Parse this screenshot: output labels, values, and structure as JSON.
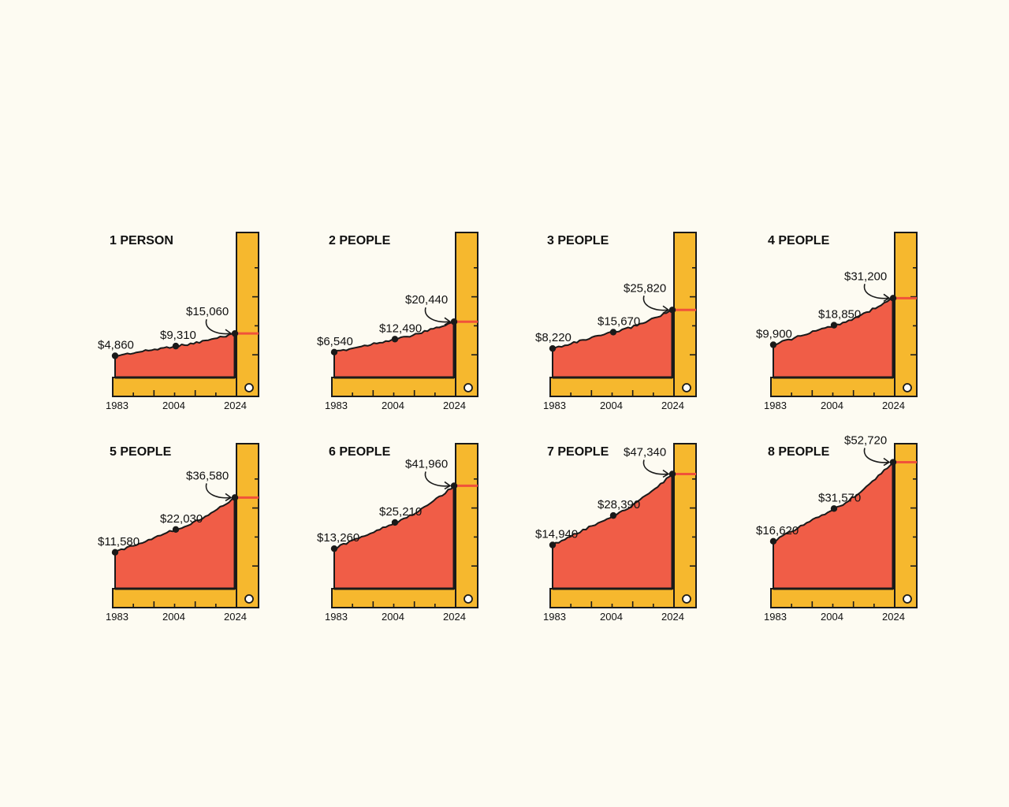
{
  "colors": {
    "background": "#fdfbf2",
    "ruler": "#f6b82e",
    "area": "#f05d47",
    "outline": "#1a1a1a",
    "marker_line": "#f0523a"
  },
  "chart_data": [
    {
      "type": "area",
      "title": "1 PERSON",
      "x": [
        "1983",
        "2004",
        "2024"
      ],
      "values": [
        4860,
        9310,
        15060
      ],
      "labels": [
        "$4,860",
        "$9,310",
        "$15,060"
      ]
    },
    {
      "type": "area",
      "title": "2 PEOPLE",
      "x": [
        "1983",
        "2004",
        "2024"
      ],
      "values": [
        6540,
        12490,
        20440
      ],
      "labels": [
        "$6,540",
        "$12,490",
        "$20,440"
      ]
    },
    {
      "type": "area",
      "title": "3 PEOPLE",
      "x": [
        "1983",
        "2004",
        "2024"
      ],
      "values": [
        8220,
        15670,
        25820
      ],
      "labels": [
        "$8,220",
        "$15,670",
        "$25,820"
      ]
    },
    {
      "type": "area",
      "title": "4 PEOPLE",
      "x": [
        "1983",
        "2004",
        "2024"
      ],
      "values": [
        9900,
        18850,
        31200
      ],
      "labels": [
        "$9,900",
        "$18,850",
        "$31,200"
      ]
    },
    {
      "type": "area",
      "title": "5 PEOPLE",
      "x": [
        "1983",
        "2004",
        "2024"
      ],
      "values": [
        11580,
        22030,
        36580
      ],
      "labels": [
        "$11,580",
        "$22,030",
        "$36,580"
      ]
    },
    {
      "type": "area",
      "title": "6 PEOPLE",
      "x": [
        "1983",
        "2004",
        "2024"
      ],
      "values": [
        13260,
        25210,
        41960
      ],
      "labels": [
        "$13,260",
        "$25,210",
        "$41,960"
      ]
    },
    {
      "type": "area",
      "title": "7 PEOPLE",
      "x": [
        "1983",
        "2004",
        "2024"
      ],
      "values": [
        14940,
        28390,
        47340
      ],
      "labels": [
        "$14,940",
        "$28,390",
        "$47,340"
      ]
    },
    {
      "type": "area",
      "title": "8 PEOPLE",
      "x": [
        "1983",
        "2004",
        "2024"
      ],
      "values": [
        16620,
        31570,
        52720
      ],
      "labels": [
        "$16,620",
        "$31,570",
        "$52,720"
      ]
    }
  ]
}
